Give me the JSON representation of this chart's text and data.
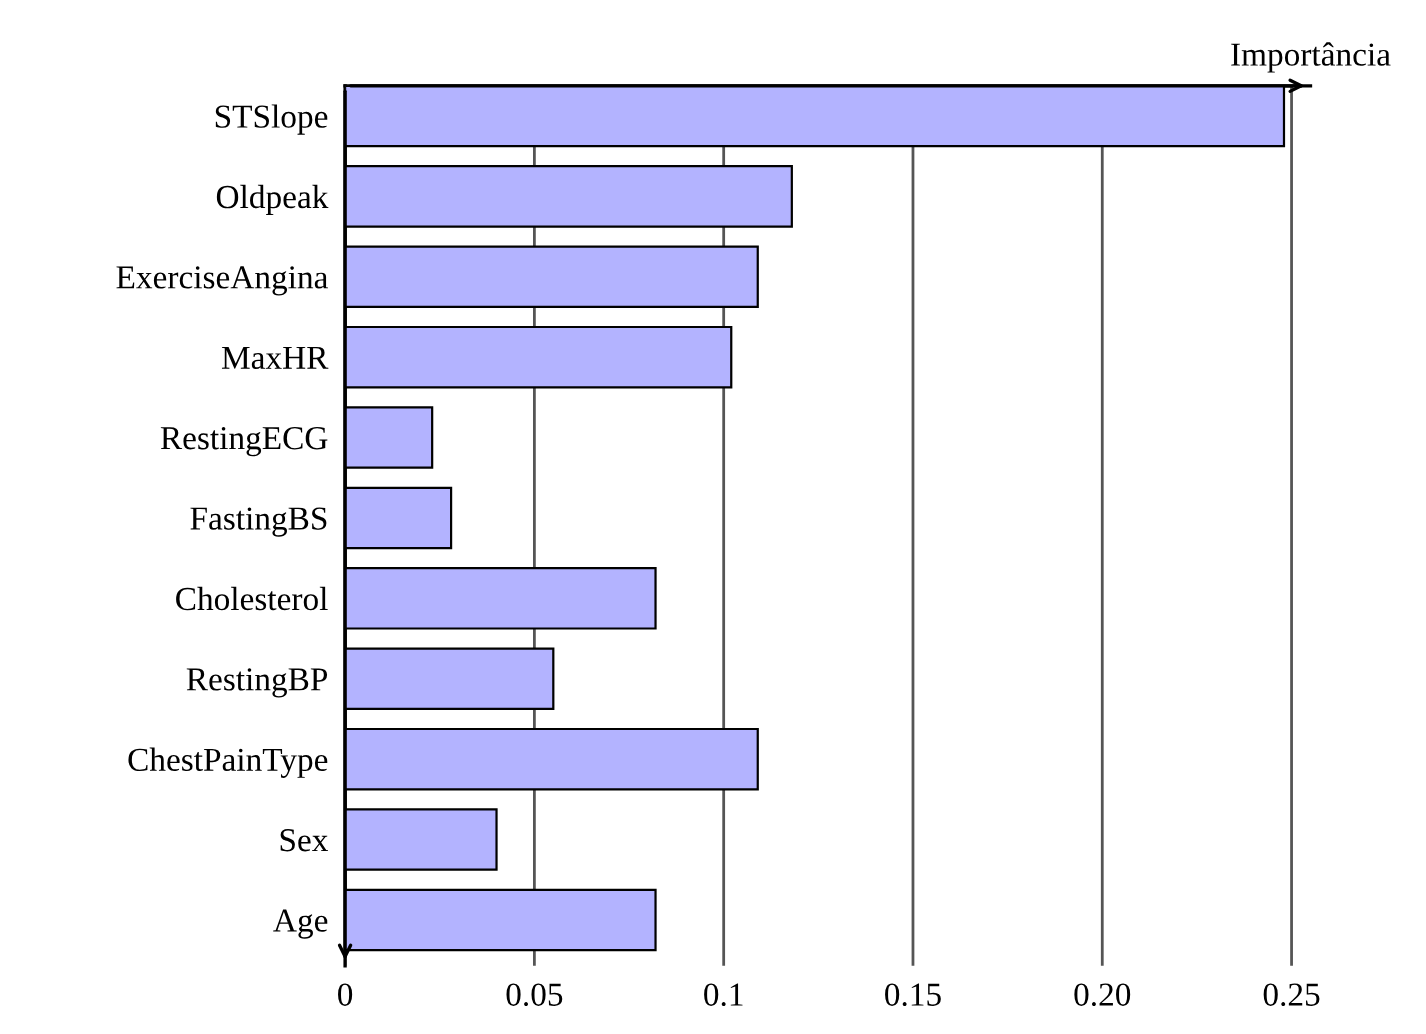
{
  "chart_data": {
    "type": "bar",
    "orientation": "horizontal",
    "xlabel": "Importância",
    "categories": [
      "STSlope",
      "Oldpeak",
      "ExerciseAngina",
      "MaxHR",
      "RestingECG",
      "FastingBS",
      "Cholesterol",
      "RestingBP",
      "ChestPainType",
      "Sex",
      "Age"
    ],
    "values": [
      0.248,
      0.118,
      0.109,
      0.102,
      0.023,
      0.028,
      0.082,
      0.055,
      0.109,
      0.04,
      0.082
    ],
    "color": "#b3b3ff",
    "xlim": [
      0,
      0.255
    ],
    "xticks": [
      0,
      0.05,
      0.1,
      0.15,
      {
        "value": 0.2,
        "label": "0.20"
      },
      0.25
    ],
    "grid": "x"
  }
}
